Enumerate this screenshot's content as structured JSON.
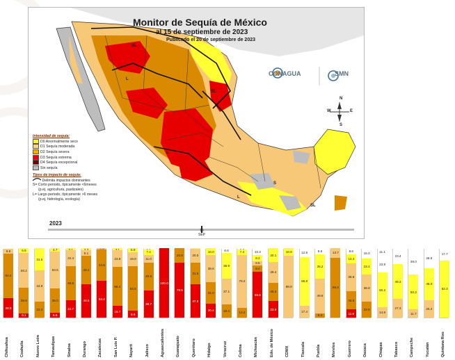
{
  "title": "Monitor de Sequía de México",
  "subtitle": "al 15 de septiembre de 2023",
  "published": "Publicado el 20 de septiembre de 2023",
  "year": "2023",
  "date_marker": {
    "day": "15",
    "month": "SEP"
  },
  "logos": {
    "conagua": "CONAGUA",
    "smn": "SMN"
  },
  "compass": {
    "n": "N",
    "s": "S",
    "e": "E",
    "w": "W"
  },
  "map_labels": [
    "SL",
    "SL",
    "SL",
    "L",
    "L",
    "L",
    "S"
  ],
  "legend": {
    "intensity_title": "Intensidad de sequía:",
    "intensity": [
      {
        "label": "D0 Anormalmente seco",
        "color": "#ffff00"
      },
      {
        "label": "D1 Sequía moderada",
        "color": "#fcd37f"
      },
      {
        "label": "D2 Sequía severa",
        "color": "#ffaa00"
      },
      {
        "label": "D3 Sequía extrema",
        "color": "#e60000"
      },
      {
        "label": "D4 Sequía excepcional",
        "color": "#730000"
      },
      {
        "label": "Sin sequía",
        "color": "#bdbdbd"
      }
    ],
    "impact_title": "Tipos de impacto de sequía:",
    "impact_line": "Delimita impactos dominantes",
    "impact_s": "S= Corto periodo, típicamente <6meses",
    "impact_s2": "(p.ej. agricultura, pastizales)",
    "impact_l": "L= Largo periodo, típicamente >6 meses",
    "impact_l2": "(p.ej. hidrología, ecología)"
  },
  "chart_data": {
    "type": "bar",
    "stacked": true,
    "ylim": [
      0,
      100
    ],
    "colors": {
      "D4": "#730000",
      "D3": "#e60000",
      "D2": "#d98a00",
      "D1": "#f6c878",
      "D0": "#ffff33",
      "none": "#ffffff"
    },
    "states": [
      {
        "name": "Chihuahua",
        "segments": [
          {
            "c": "D3",
            "v": 28.0
          },
          {
            "c": "D2",
            "v": 64.4
          },
          {
            "c": "D1",
            "v": 6.8
          }
        ]
      },
      {
        "name": "Coahuila",
        "segments": [
          {
            "c": "D3",
            "v": 6.1
          },
          {
            "c": "D2",
            "v": 36.8
          },
          {
            "c": "D1",
            "v": 50.2
          },
          {
            "c": "D0",
            "v": 6.9
          }
        ]
      },
      {
        "name": "Nuevo León",
        "segments": [
          {
            "c": "D2",
            "v": 23.3
          },
          {
            "c": "D1",
            "v": 44.9
          },
          {
            "c": "D0",
            "v": 31.5
          }
        ]
      },
      {
        "name": "Tamaulipas",
        "segments": [
          {
            "c": "D3",
            "v": 6.8
          },
          {
            "c": "D2",
            "v": 35.0
          },
          {
            "c": "D1",
            "v": 53.5
          },
          {
            "c": "D0",
            "v": 4.7
          }
        ]
      },
      {
        "name": "Sinaloa",
        "segments": [
          {
            "c": "D3",
            "v": 24.7
          },
          {
            "c": "D2",
            "v": 49.8
          },
          {
            "c": "D1",
            "v": 22.4
          },
          {
            "c": "D0",
            "v": 3.1
          }
        ]
      },
      {
        "name": "Durango",
        "segments": [
          {
            "c": "D3",
            "v": 48.5
          },
          {
            "c": "D2",
            "v": 40.1
          },
          {
            "c": "D1",
            "v": 8.1
          },
          {
            "c": "D0",
            "v": 3.3
          }
        ]
      },
      {
        "name": "Zacatecas",
        "segments": [
          {
            "c": "D3",
            "v": 53.2
          },
          {
            "c": "D2",
            "v": 44.5
          },
          {
            "c": "D1",
            "v": 2.3
          }
        ]
      },
      {
        "name": "San Luis P.",
        "segments": [
          {
            "c": "D3",
            "v": 16.7
          },
          {
            "c": "D2",
            "v": 56.4
          },
          {
            "c": "D1",
            "v": 23.8
          },
          {
            "c": "D0",
            "v": 3.1
          }
        ]
      },
      {
        "name": "Nayarit",
        "segments": [
          {
            "c": "D3",
            "v": 9.6
          },
          {
            "c": "D2",
            "v": 64.6
          },
          {
            "c": "D1",
            "v": 19.9
          },
          {
            "c": "D0",
            "v": 5.9
          }
        ]
      },
      {
        "name": "Jalisco",
        "segments": [
          {
            "c": "D3",
            "v": 38.7
          },
          {
            "c": "D2",
            "v": 40.8
          },
          {
            "c": "D1",
            "v": 11.0
          },
          {
            "c": "D0",
            "v": 7.4
          },
          {
            "c": "none",
            "v": 2.1
          }
        ]
      },
      {
        "name": "Aguascalientes",
        "segments": [
          {
            "c": "D3",
            "v": 100.0
          }
        ]
      },
      {
        "name": "Guanajuato",
        "segments": [
          {
            "c": "D3",
            "v": 79.5
          },
          {
            "c": "D2",
            "v": 20.5
          }
        ]
      },
      {
        "name": "Querétaro",
        "segments": [
          {
            "c": "D3",
            "v": 47.8
          },
          {
            "c": "D2",
            "v": 31.5
          },
          {
            "c": "D1",
            "v": 20.0
          },
          {
            "c": "D0",
            "v": 0.7
          }
        ]
      },
      {
        "name": "Hidalgo",
        "segments": [
          {
            "c": "D3",
            "v": 20.4
          },
          {
            "c": "D2",
            "v": 31.0
          },
          {
            "c": "D1",
            "v": 38.6
          },
          {
            "c": "D0",
            "v": 10.0
          }
        ]
      },
      {
        "name": "Veracruz",
        "segments": [
          {
            "c": "D2",
            "v": 19.4
          },
          {
            "c": "D1",
            "v": 37.1
          },
          {
            "c": "D0",
            "v": 36.9
          },
          {
            "c": "none",
            "v": 6.6
          }
        ]
      },
      {
        "name": "Colima",
        "segments": [
          {
            "c": "D2",
            "v": 14.2
          },
          {
            "c": "D1",
            "v": 76.2
          },
          {
            "c": "D0",
            "v": 7.4
          },
          {
            "c": "none",
            "v": 2.2
          }
        ]
      },
      {
        "name": "Michoacán",
        "segments": [
          {
            "c": "D3",
            "v": 65.6
          },
          {
            "c": "D2",
            "v": 9.4
          },
          {
            "c": "D1",
            "v": 6.5
          },
          {
            "c": "D0",
            "v": 8.2
          },
          {
            "c": "none",
            "v": 10.3
          }
        ]
      },
      {
        "name": "Edo. de México",
        "segments": [
          {
            "c": "D3",
            "v": 23.9
          },
          {
            "c": "D2",
            "v": 26.6
          },
          {
            "c": "D1",
            "v": 29.4
          },
          {
            "c": "D0",
            "v": 20.1
          }
        ]
      },
      {
        "name": "CDMX",
        "segments": [
          {
            "c": "D1",
            "v": 88.9
          },
          {
            "c": "D0",
            "v": 10.9
          }
        ]
      },
      {
        "name": "Tlaxcala",
        "segments": [
          {
            "c": "D1",
            "v": 17.4
          },
          {
            "c": "D0",
            "v": 69.8
          },
          {
            "c": "none",
            "v": 12.8
          }
        ]
      },
      {
        "name": "Puebla",
        "segments": [
          {
            "c": "D2",
            "v": 6.4
          },
          {
            "c": "D1",
            "v": 49.8
          },
          {
            "c": "D0",
            "v": 35.2
          },
          {
            "c": "none",
            "v": 8.6
          }
        ]
      },
      {
        "name": "Morelos",
        "segments": [
          {
            "c": "D2",
            "v": 86.3
          },
          {
            "c": "D1",
            "v": 13.7
          }
        ]
      },
      {
        "name": "Guerrero",
        "segments": [
          {
            "c": "D3",
            "v": 11.6
          },
          {
            "c": "D2",
            "v": 26.6
          },
          {
            "c": "D1",
            "v": 39.8
          },
          {
            "c": "D0",
            "v": 13.4
          },
          {
            "c": "none",
            "v": 8.6
          }
        ]
      },
      {
        "name": "Oaxaca",
        "segments": [
          {
            "c": "D2",
            "v": 22.8
          },
          {
            "c": "D1",
            "v": 38.8
          },
          {
            "c": "D0",
            "v": 23.4
          },
          {
            "c": "none",
            "v": 15.0
          }
        ]
      },
      {
        "name": "Chiapas",
        "segments": [
          {
            "c": "D1",
            "v": 14.8
          },
          {
            "c": "D0",
            "v": 50.2
          },
          {
            "c": "none",
            "v": 23.9
          },
          {
            "c": "none",
            "v": 11.1
          }
        ]
      },
      {
        "name": "Tabasco",
        "segments": [
          {
            "c": "D1",
            "v": 27.3
          },
          {
            "c": "D0",
            "v": 49.3
          },
          {
            "c": "none",
            "v": 23.4
          }
        ]
      },
      {
        "name": "Campeche",
        "segments": [
          {
            "c": "D1",
            "v": 11.7
          },
          {
            "c": "D0",
            "v": 50.3
          },
          {
            "c": "none",
            "v": 38.0
          }
        ]
      },
      {
        "name": "Yucatán",
        "segments": [
          {
            "c": "D1",
            "v": 25.2
          },
          {
            "c": "D0",
            "v": 46.0
          },
          {
            "c": "none",
            "v": 28.8
          }
        ]
      },
      {
        "name": "Quintana Roo",
        "segments": [
          {
            "c": "D0",
            "v": 82.3
          },
          {
            "c": "none",
            "v": 17.7
          }
        ]
      }
    ]
  }
}
